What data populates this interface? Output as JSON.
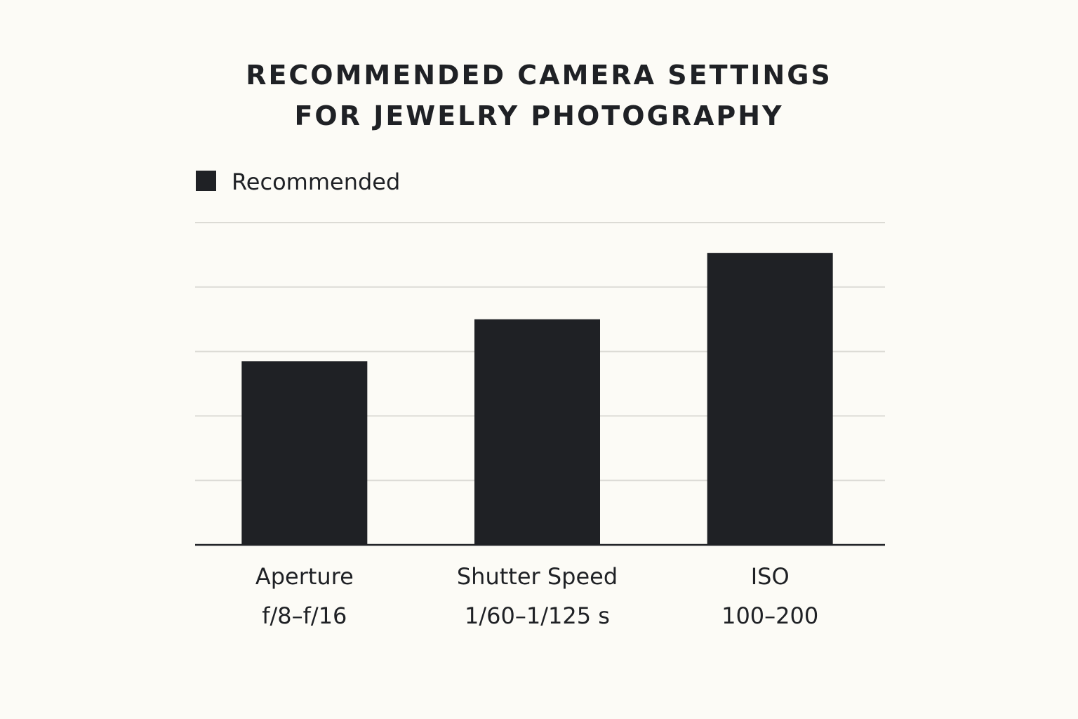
{
  "chart_data": {
    "type": "bar",
    "title_lines": [
      "RECOMMENDED CAMERA SETTINGS",
      "FOR JEWELRY PHOTOGRAPHY"
    ],
    "legend": [
      "Recommended"
    ],
    "categories": [
      {
        "name": "Aperture",
        "range": "f/8–f/16"
      },
      {
        "name": "Shutter Speed",
        "range": "1/60–1/125 s"
      },
      {
        "name": "ISO",
        "range": "100–200"
      }
    ],
    "series": [
      {
        "name": "Recommended",
        "values": [
          2.85,
          3.5,
          4.53
        ]
      }
    ],
    "ylim": [
      0,
      5
    ],
    "grid": true,
    "y_tick_labels_shown": false,
    "legend_position": "top-left",
    "colors": {
      "background": "#fcfbf6",
      "bar": "#1f2125",
      "grid": "#dcdbd5",
      "axis": "#1f2125",
      "text": "#1f2125"
    }
  }
}
